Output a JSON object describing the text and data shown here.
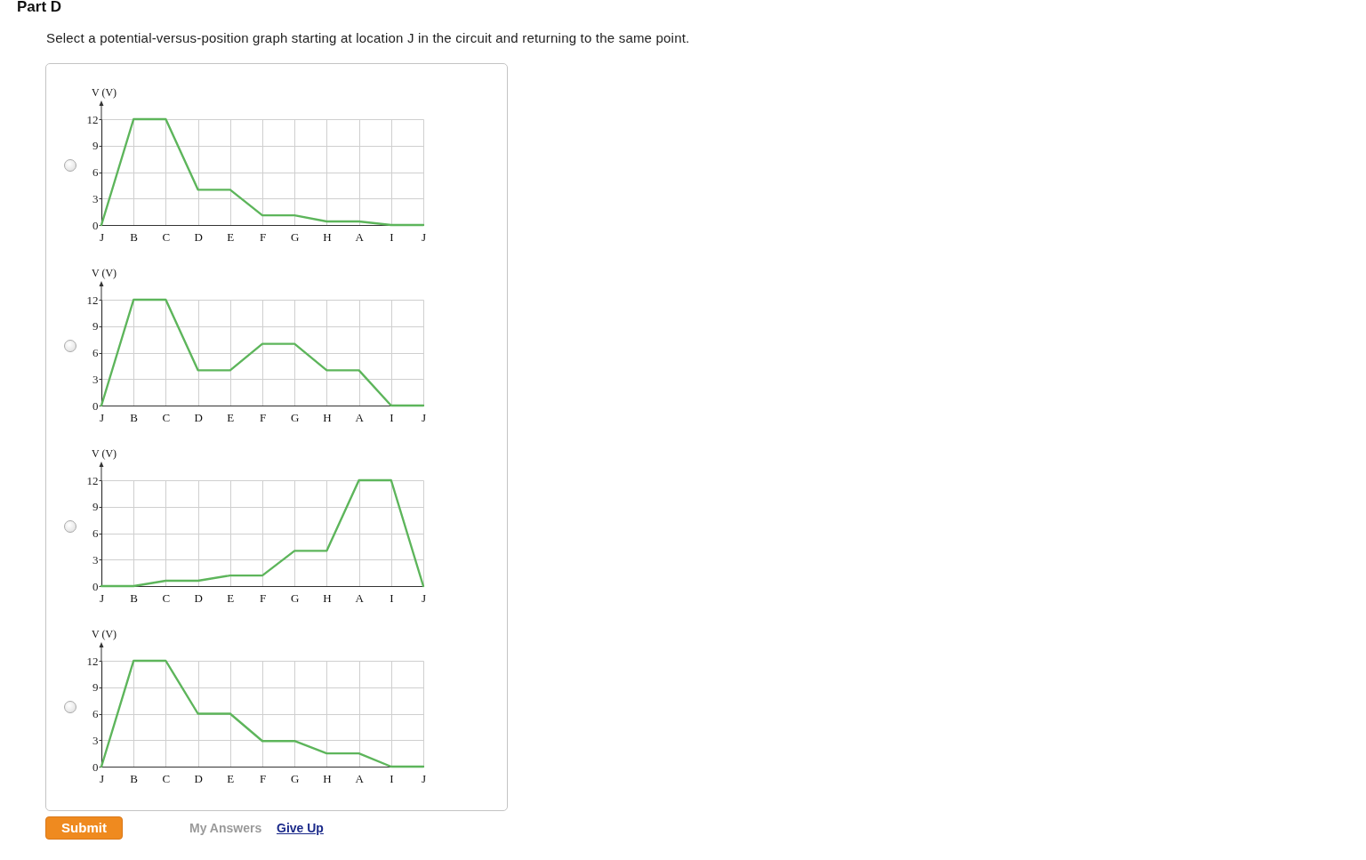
{
  "chart_data": [
    {
      "type": "line",
      "title": "Part D",
      "subtitle": "Select a potential-versus-position graph starting at location J in the circuit and returning to the same point.",
      "categories": [
        "J",
        "B",
        "C",
        "D",
        "E",
        "F",
        "G",
        "H",
        "A",
        "I",
        "J"
      ],
      "values": [
        0,
        12,
        12,
        4,
        4,
        1.1,
        1.1,
        0.4,
        0.4,
        0,
        0
      ],
      "color": "#5db55b",
      "ylabel": "V (V)",
      "ylim": [
        0,
        12
      ],
      "yticks": [
        0,
        3,
        6,
        9,
        12
      ],
      "grid": true
    },
    {
      "type": "line",
      "categories": [
        "J",
        "B",
        "C",
        "D",
        "E",
        "F",
        "G",
        "H",
        "A",
        "I",
        "J"
      ],
      "values": [
        0,
        12,
        12,
        4,
        4,
        7,
        7,
        4,
        4,
        0,
        0
      ],
      "color": "#5db55b",
      "ylabel": "V (V)",
      "ylim": [
        0,
        12
      ],
      "yticks": [
        0,
        3,
        6,
        9,
        12
      ],
      "grid": true
    },
    {
      "type": "line",
      "categories": [
        "J",
        "B",
        "C",
        "D",
        "E",
        "F",
        "G",
        "H",
        "A",
        "I",
        "J"
      ],
      "values": [
        0,
        0,
        0.6,
        0.6,
        1.2,
        1.2,
        4,
        4,
        12,
        12,
        0
      ],
      "color": "#5db55b",
      "ylabel": "V (V)",
      "ylim": [
        0,
        12
      ],
      "yticks": [
        0,
        3,
        6,
        9,
        12
      ],
      "grid": true
    },
    {
      "type": "line",
      "categories": [
        "J",
        "B",
        "C",
        "D",
        "E",
        "F",
        "G",
        "H",
        "A",
        "I",
        "J"
      ],
      "values": [
        0,
        12,
        12,
        6,
        6,
        2.9,
        2.9,
        1.5,
        1.5,
        0,
        0
      ],
      "color": "#5db55b",
      "ylabel": "V (V)",
      "ylim": [
        0,
        12
      ],
      "yticks": [
        0,
        3,
        6,
        9,
        12
      ],
      "grid": true,
      "annotations": [
        "Submit",
        "My Answers",
        "Give Up"
      ]
    }
  ]
}
